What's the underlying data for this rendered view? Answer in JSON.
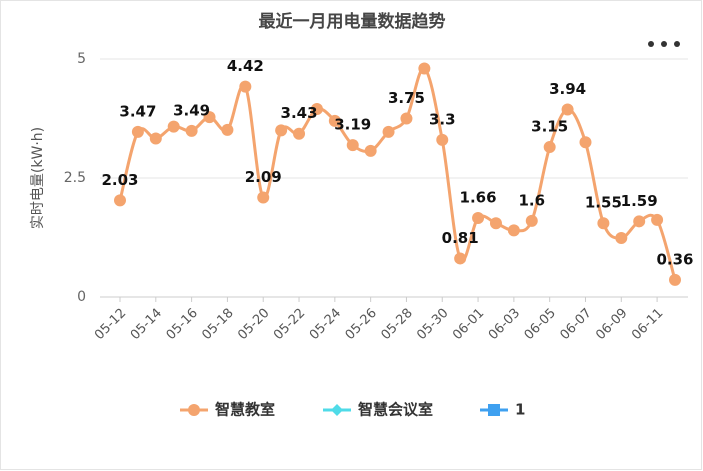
{
  "chart_data": {
    "type": "line",
    "title": "最近一月用电量数据趋势",
    "y_label": "实时电量(kW·h)",
    "categories": [
      "05-12",
      null,
      "05-14",
      null,
      "05-16",
      null,
      "05-18",
      null,
      "05-20",
      null,
      "05-22",
      null,
      "05-24",
      null,
      "05-26",
      null,
      "05-28",
      null,
      "05-30",
      null,
      "06-01",
      null,
      "06-03",
      null,
      "06-05",
      null,
      "06-07",
      null,
      "06-09",
      null,
      "06-11",
      null
    ],
    "series": [
      {
        "name": "智慧教室",
        "color": "#f4a46e",
        "symbol": "circle",
        "values": [
          2.03,
          3.47,
          3.33,
          3.58,
          3.49,
          3.78,
          3.51,
          4.42,
          2.09,
          3.5,
          3.43,
          3.95,
          3.7,
          3.19,
          3.07,
          3.47,
          3.75,
          4.8,
          3.3,
          0.81,
          1.66,
          1.55,
          1.4,
          1.6,
          3.15,
          3.94,
          3.25,
          1.55,
          1.24,
          1.59,
          1.62,
          0.36
        ],
        "value_labels": [
          "2.03",
          "3.47",
          null,
          null,
          "3.49",
          null,
          null,
          "4.42",
          "2.09",
          null,
          "3.43",
          null,
          null,
          "3.19",
          null,
          null,
          "3.75",
          null,
          "3.3",
          "0.81",
          "1.66",
          null,
          null,
          "1.6",
          "3.15",
          "3.94",
          null,
          "1.55",
          null,
          "1.59",
          null,
          "0.36"
        ]
      },
      {
        "name": "智慧会议室",
        "color": "#4fdbe8",
        "symbol": "diamond",
        "values": [
          null,
          null,
          null,
          null,
          null,
          null,
          null,
          null,
          null,
          null,
          null,
          null,
          null,
          null,
          null,
          null,
          null,
          null,
          null,
          null,
          null,
          null,
          null,
          null,
          null,
          null,
          null,
          null,
          null,
          null,
          null,
          null
        ]
      },
      {
        "name": "1",
        "color": "#3ea0f0",
        "symbol": "square",
        "values": [
          null,
          null,
          null,
          null,
          null,
          null,
          null,
          null,
          null,
          null,
          null,
          null,
          null,
          null,
          null,
          null,
          null,
          null,
          null,
          null,
          null,
          null,
          null,
          null,
          null,
          null,
          null,
          null,
          null,
          null,
          null,
          null
        ]
      }
    ],
    "ylim": [
      0,
      5
    ],
    "yticks": [
      0,
      2.5,
      5
    ],
    "grid": true,
    "smooth": true,
    "legend": "bottom"
  }
}
